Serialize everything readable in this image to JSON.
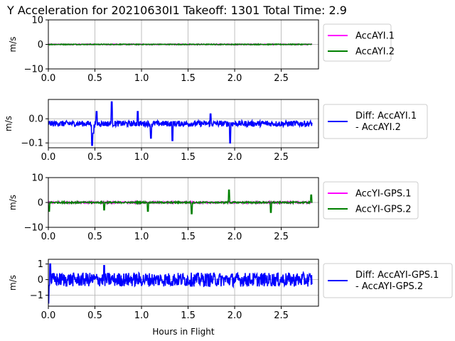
{
  "chart_data": {
    "type": "line",
    "title": "Y Acceleration for 20210630I1 Takeoff: 1301 Total Time: 2.9",
    "xlabel": "Hours in Flight",
    "x_range": [
      0.0,
      2.83
    ],
    "grid": true,
    "panels": [
      {
        "ylabel": "m/s",
        "xlim": [
          0,
          2.9
        ],
        "ylim": [
          -10,
          10
        ],
        "xticks": [
          "0.0",
          "0.5",
          "1.0",
          "1.5",
          "2.0",
          "2.5"
        ],
        "yticks": [
          "10",
          "0",
          "−10"
        ],
        "legend_location": "right, outside",
        "series": [
          {
            "name": "AccAYI.1",
            "color": "#ff00ff",
            "baseline": 0.0,
            "noise": 0.15,
            "spikes": []
          },
          {
            "name": "AccAYI.2",
            "color": "#008000",
            "baseline": 0.0,
            "noise": 0.15,
            "spikes": []
          }
        ]
      },
      {
        "ylabel": "m/s",
        "xlim": [
          0,
          2.9
        ],
        "ylim": [
          -0.12,
          0.08
        ],
        "xticks": [
          "0.0",
          "0.5",
          "1.0",
          "1.5",
          "2.0",
          "2.5"
        ],
        "yticks": [
          "0.0",
          "−0.1"
        ],
        "legend_location": "right, outside",
        "series": [
          {
            "name": "Diff: AccAYI.1\n- AccAYI.2",
            "color": "#0000ff",
            "baseline": -0.02,
            "noise": 0.012,
            "spikes": [
              [
                0.47,
                -0.11
              ],
              [
                0.68,
                0.07
              ],
              [
                0.48,
                -0.06
              ],
              [
                1.1,
                -0.08
              ],
              [
                1.33,
                -0.09
              ],
              [
                1.95,
                -0.1
              ],
              [
                0.96,
                0.03
              ],
              [
                1.74,
                0.02
              ],
              [
                0.52,
                0.03
              ]
            ]
          }
        ]
      },
      {
        "ylabel": "m/s",
        "xlim": [
          0,
          2.9
        ],
        "ylim": [
          -10,
          10
        ],
        "xticks": [
          "0.0",
          "0.5",
          "1.0",
          "1.5",
          "2.0",
          "2.5"
        ],
        "yticks": [
          "10",
          "0",
          "−10"
        ],
        "legend_location": "right, outside",
        "series": [
          {
            "name": "AccYI-GPS.1",
            "color": "#ff00ff",
            "baseline": 0.0,
            "noise": 0.3,
            "spikes": []
          },
          {
            "name": "AccYI-GPS.2",
            "color": "#008000",
            "baseline": 0.0,
            "noise": 0.3,
            "spikes": [
              [
                0.01,
                -3.5
              ],
              [
                0.6,
                -3.0
              ],
              [
                1.07,
                -3.5
              ],
              [
                1.54,
                -4.5
              ],
              [
                1.94,
                5.0
              ],
              [
                2.39,
                -4.0
              ],
              [
                2.82,
                3.0
              ]
            ]
          }
        ]
      },
      {
        "ylabel": "m/s",
        "xlim": [
          0,
          2.9
        ],
        "ylim": [
          -1.7,
          1.3
        ],
        "xticks": [
          "0.0",
          "0.5",
          "1.0",
          "1.5",
          "2.0",
          "2.5"
        ],
        "yticks": [
          "1",
          "0",
          "−1"
        ],
        "legend_location": "right, outside",
        "series": [
          {
            "name": "Diff: AccAYI-GPS.1\n- AccAYI-GPS.2",
            "color": "#0000ff",
            "baseline": 0.0,
            "noise": 0.45,
            "spikes": [
              [
                0.0,
                -1.5
              ],
              [
                0.6,
                0.9
              ],
              [
                0.02,
                1.0
              ]
            ]
          }
        ]
      }
    ]
  }
}
